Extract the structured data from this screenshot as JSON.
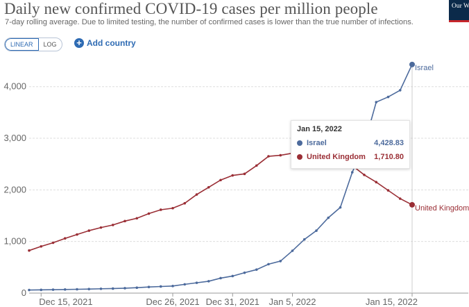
{
  "header": {
    "title": "Daily new confirmed COVID-19 cases per million people",
    "subtitle": "7-day rolling average. Due to limited testing, the number of confirmed cases is lower than the true number of infections.",
    "logo_text": "Our World in Data"
  },
  "controls": {
    "scale_options": [
      "LINEAR",
      "LOG"
    ],
    "selected_scale": "LINEAR",
    "add_country_label": "Add country"
  },
  "colors": {
    "israel": "#4c6a9c",
    "uk": "#9a2e35",
    "grid": "#dddddd",
    "axis_text": "#666666"
  },
  "tooltip": {
    "date": "Jan 15, 2022",
    "rows": [
      {
        "name": "Israel",
        "value": "4,428.83",
        "color": "#4c6a9c"
      },
      {
        "name": "United Kingdom",
        "value": "1,710.80",
        "color": "#9a2e35"
      }
    ]
  },
  "chart_data": {
    "type": "line",
    "title": "Daily new confirmed COVID-19 cases per million people",
    "ylim": [
      0,
      4400
    ],
    "yticks": [
      0,
      1000,
      2000,
      3000,
      4000
    ],
    "ytick_labels": [
      "0",
      "1,000",
      "2,000",
      "3,000",
      "4,000"
    ],
    "xticks": [
      "2021-12-15",
      "2021-12-26",
      "2021-12-31",
      "2022-01-05",
      "2022-01-15"
    ],
    "xtick_labels": [
      "Dec 15, 2021",
      "Dec 26, 2021",
      "Dec 31, 2021",
      "Jan 5, 2022",
      "Jan 15, 2022"
    ],
    "x": [
      "2021-12-14",
      "2021-12-15",
      "2021-12-16",
      "2021-12-17",
      "2021-12-18",
      "2021-12-19",
      "2021-12-20",
      "2021-12-21",
      "2021-12-22",
      "2021-12-23",
      "2021-12-24",
      "2021-12-25",
      "2021-12-26",
      "2021-12-27",
      "2021-12-28",
      "2021-12-29",
      "2021-12-30",
      "2021-12-31",
      "2022-01-01",
      "2022-01-02",
      "2022-01-03",
      "2022-01-04",
      "2022-01-05",
      "2022-01-06",
      "2022-01-07",
      "2022-01-08",
      "2022-01-09",
      "2022-01-10",
      "2022-01-11",
      "2022-01-12",
      "2022-01-13",
      "2022-01-14",
      "2022-01-15"
    ],
    "grid": true,
    "series": [
      {
        "name": "Israel",
        "end_label": "Israel",
        "values": [
          60,
          63,
          67,
          70,
          74,
          78,
          84,
          88,
          95,
          105,
          118,
          128,
          137,
          170,
          200,
          230,
          290,
          330,
          395,
          455,
          560,
          620,
          820,
          1040,
          1210,
          1460,
          1660,
          2340,
          2870,
          3700,
          3800,
          3930,
          4429
        ]
      },
      {
        "name": "United Kingdom",
        "end_label": "United Kingdom",
        "values": [
          825,
          905,
          975,
          1060,
          1135,
          1210,
          1270,
          1320,
          1395,
          1450,
          1540,
          1615,
          1645,
          1740,
          1910,
          2050,
          2190,
          2280,
          2310,
          2470,
          2650,
          2670,
          2710,
          2700,
          2680,
          2660,
          2590,
          2470,
          2290,
          2150,
          1990,
          1830,
          1711
        ]
      }
    ]
  }
}
